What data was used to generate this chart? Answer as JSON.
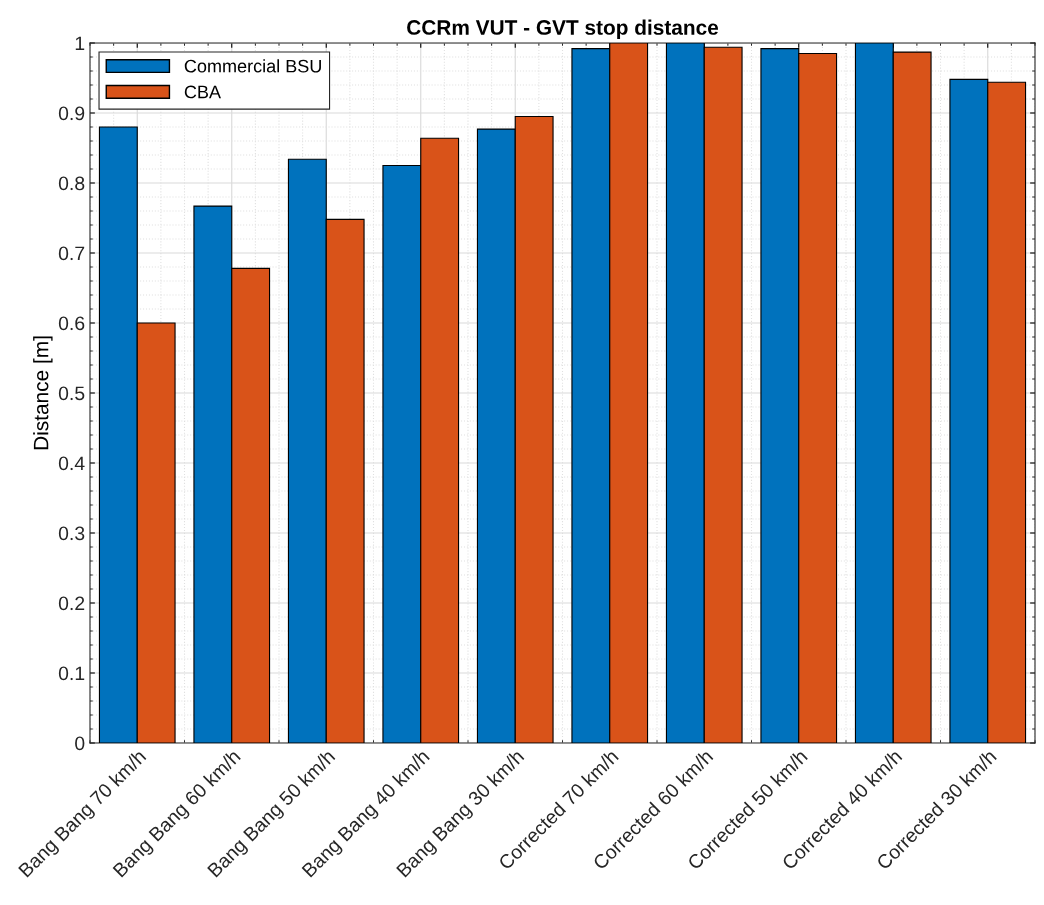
{
  "chart_data": {
    "type": "bar",
    "title": "CCRm VUT - GVT stop distance",
    "ylabel": "Distance [m]",
    "categories": [
      "Bang Bang 70 km/h",
      "Bang Bang 60 km/h",
      "Bang Bang 50 km/h",
      "Bang Bang 40 km/h",
      "Bang Bang 30 km/h",
      "Corrected 70 km/h",
      "Corrected 60 km/h",
      "Corrected 50 km/h",
      "Corrected 40 km/h",
      "Corrected 30 km/h"
    ],
    "series": [
      {
        "name": "Commercial BSU",
        "color": "#0072bd",
        "values": [
          0.88,
          0.767,
          0.834,
          0.825,
          0.877,
          0.992,
          1.0,
          0.992,
          1.0,
          0.948
        ]
      },
      {
        "name": "CBA",
        "color": "#d95319",
        "values": [
          0.6,
          0.678,
          0.748,
          0.864,
          0.895,
          1.0,
          0.994,
          0.985,
          0.987,
          0.944
        ]
      }
    ],
    "ylim": [
      0,
      1
    ],
    "yticks": [
      0,
      0.1,
      0.2,
      0.3,
      0.4,
      0.5,
      0.6,
      0.7,
      0.8,
      0.9,
      1
    ],
    "grid": true,
    "legend": "top left"
  }
}
